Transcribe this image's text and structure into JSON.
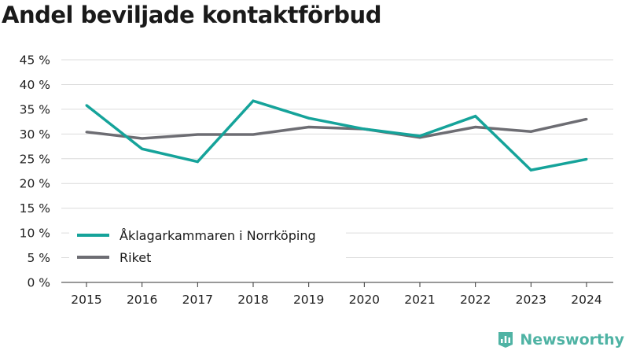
{
  "title": "Andel beviljade kontaktförbud",
  "brand": {
    "name": "Newsworthy",
    "icon": "newsworthy-logo-icon",
    "color": "#4fb3a4"
  },
  "chart_data": {
    "type": "line",
    "title": "Andel beviljade kontaktförbud",
    "xlabel": "",
    "ylabel": "",
    "categories": [
      "2015",
      "2016",
      "2017",
      "2018",
      "2019",
      "2020",
      "2021",
      "2022",
      "2023",
      "2024"
    ],
    "ylim": [
      0,
      45
    ],
    "yticks": [
      0,
      5,
      10,
      15,
      20,
      25,
      30,
      35,
      40,
      45
    ],
    "ytick_labels": [
      "0 %",
      "5 %",
      "10 %",
      "15 %",
      "20 %",
      "25 %",
      "30 %",
      "35 %",
      "40 %",
      "45 %"
    ],
    "grid": true,
    "legend_position": "bottom-left",
    "series": [
      {
        "name": "Åklagarkammaren i Norrköping",
        "color": "#15a39a",
        "values": [
          35.8,
          27.0,
          24.4,
          36.7,
          33.2,
          31.0,
          29.6,
          33.6,
          22.7,
          24.9
        ]
      },
      {
        "name": "Riket",
        "color": "#6d6d73",
        "values": [
          30.4,
          29.1,
          29.9,
          29.9,
          31.4,
          31.0,
          29.3,
          31.4,
          30.5,
          33.0
        ]
      }
    ]
  }
}
